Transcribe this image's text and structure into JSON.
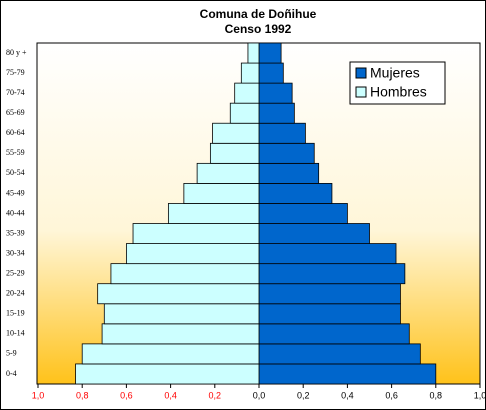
{
  "chart_data": {
    "type": "pyramid",
    "title": "Comuna de Doñihue",
    "subtitle": "Censo 1992",
    "categories": [
      "0-4",
      "5-9",
      "10-14",
      "15-19",
      "20-24",
      "25-29",
      "30-34",
      "35-39",
      "40-44",
      "45-49",
      "50-54",
      "55-59",
      "60-64",
      "65-69",
      "70-74",
      "75-79",
      "80 y +"
    ],
    "series": [
      {
        "name": "Mujeres",
        "color": "#0066cc",
        "side": "right",
        "values": [
          0.8,
          0.73,
          0.68,
          0.64,
          0.64,
          0.66,
          0.62,
          0.5,
          0.4,
          0.33,
          0.27,
          0.25,
          0.21,
          0.16,
          0.15,
          0.11,
          0.1
        ]
      },
      {
        "name": "Hombres",
        "color": "#ccffff",
        "side": "left",
        "values": [
          0.83,
          0.8,
          0.71,
          0.7,
          0.73,
          0.67,
          0.6,
          0.57,
          0.41,
          0.34,
          0.28,
          0.22,
          0.21,
          0.13,
          0.11,
          0.08,
          0.05
        ]
      }
    ],
    "xlim": [
      -1,
      1
    ],
    "xticks": [
      {
        "value": -1,
        "label": "1,0"
      },
      {
        "value": -0.8,
        "label": "0,8"
      },
      {
        "value": -0.6,
        "label": "0,6"
      },
      {
        "value": -0.4,
        "label": "0,4"
      },
      {
        "value": -0.2,
        "label": "0,2"
      },
      {
        "value": 0,
        "label": "0,0"
      },
      {
        "value": 0.2,
        "label": "0,2"
      },
      {
        "value": 0.4,
        "label": "0,4"
      },
      {
        "value": 0.6,
        "label": "0,6"
      },
      {
        "value": 0.8,
        "label": "0,8"
      },
      {
        "value": 1,
        "label": "1,0"
      }
    ],
    "negative_tick_color": "#ff0000",
    "legend": "upper right"
  }
}
